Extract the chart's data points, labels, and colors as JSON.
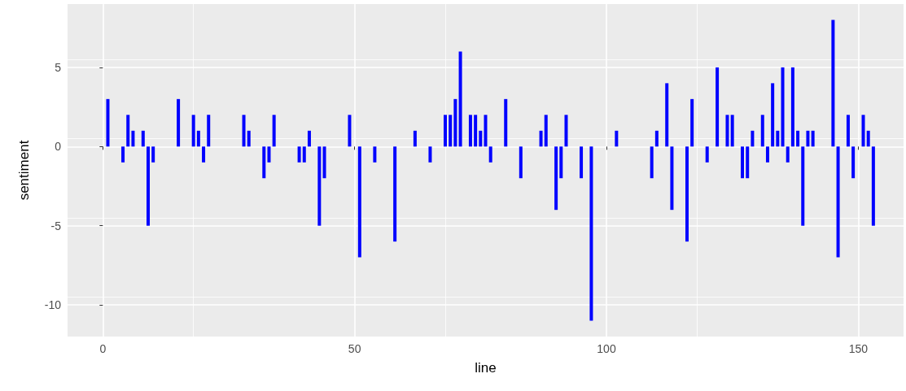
{
  "chart_data": {
    "type": "bar",
    "xlabel": "line",
    "ylabel": "sentiment",
    "x": [
      1,
      4,
      5,
      6,
      8,
      9,
      10,
      15,
      18,
      19,
      20,
      21,
      28,
      29,
      32,
      33,
      34,
      39,
      40,
      41,
      43,
      44,
      49,
      51,
      54,
      58,
      62,
      65,
      68,
      69,
      70,
      71,
      73,
      74,
      75,
      76,
      77,
      80,
      83,
      87,
      88,
      90,
      91,
      92,
      95,
      97,
      102,
      109,
      110,
      112,
      113,
      116,
      117,
      120,
      122,
      124,
      125,
      127,
      128,
      129,
      131,
      132,
      133,
      134,
      135,
      136,
      137,
      138,
      139,
      140,
      141,
      145,
      146,
      148,
      149,
      151,
      152,
      153
    ],
    "values": [
      3,
      -1,
      2,
      1,
      1,
      -5,
      -1,
      3,
      2,
      1,
      -1,
      2,
      2,
      1,
      -2,
      -1,
      2,
      -1,
      -1,
      1,
      -5,
      -2,
      2,
      -7,
      -1,
      -6,
      1,
      -1,
      2,
      2,
      3,
      6,
      2,
      2,
      1,
      2,
      -1,
      3,
      -2,
      1,
      2,
      -4,
      -2,
      2,
      -2,
      -11,
      1,
      -2,
      1,
      4,
      -4,
      -6,
      3,
      -1,
      5,
      2,
      2,
      -2,
      -2,
      1,
      2,
      -1,
      4,
      1,
      5,
      -1,
      5,
      1,
      -5,
      1,
      1,
      8,
      -7,
      2,
      -2,
      2,
      1,
      -5
    ],
    "color": "#0000ff",
    "xlim": [
      -7,
      159
    ],
    "ylim": [
      -12,
      9
    ],
    "xticks": [
      0,
      50,
      100,
      150
    ],
    "yticks": [
      -10,
      -5,
      0,
      5
    ],
    "grid": true
  }
}
